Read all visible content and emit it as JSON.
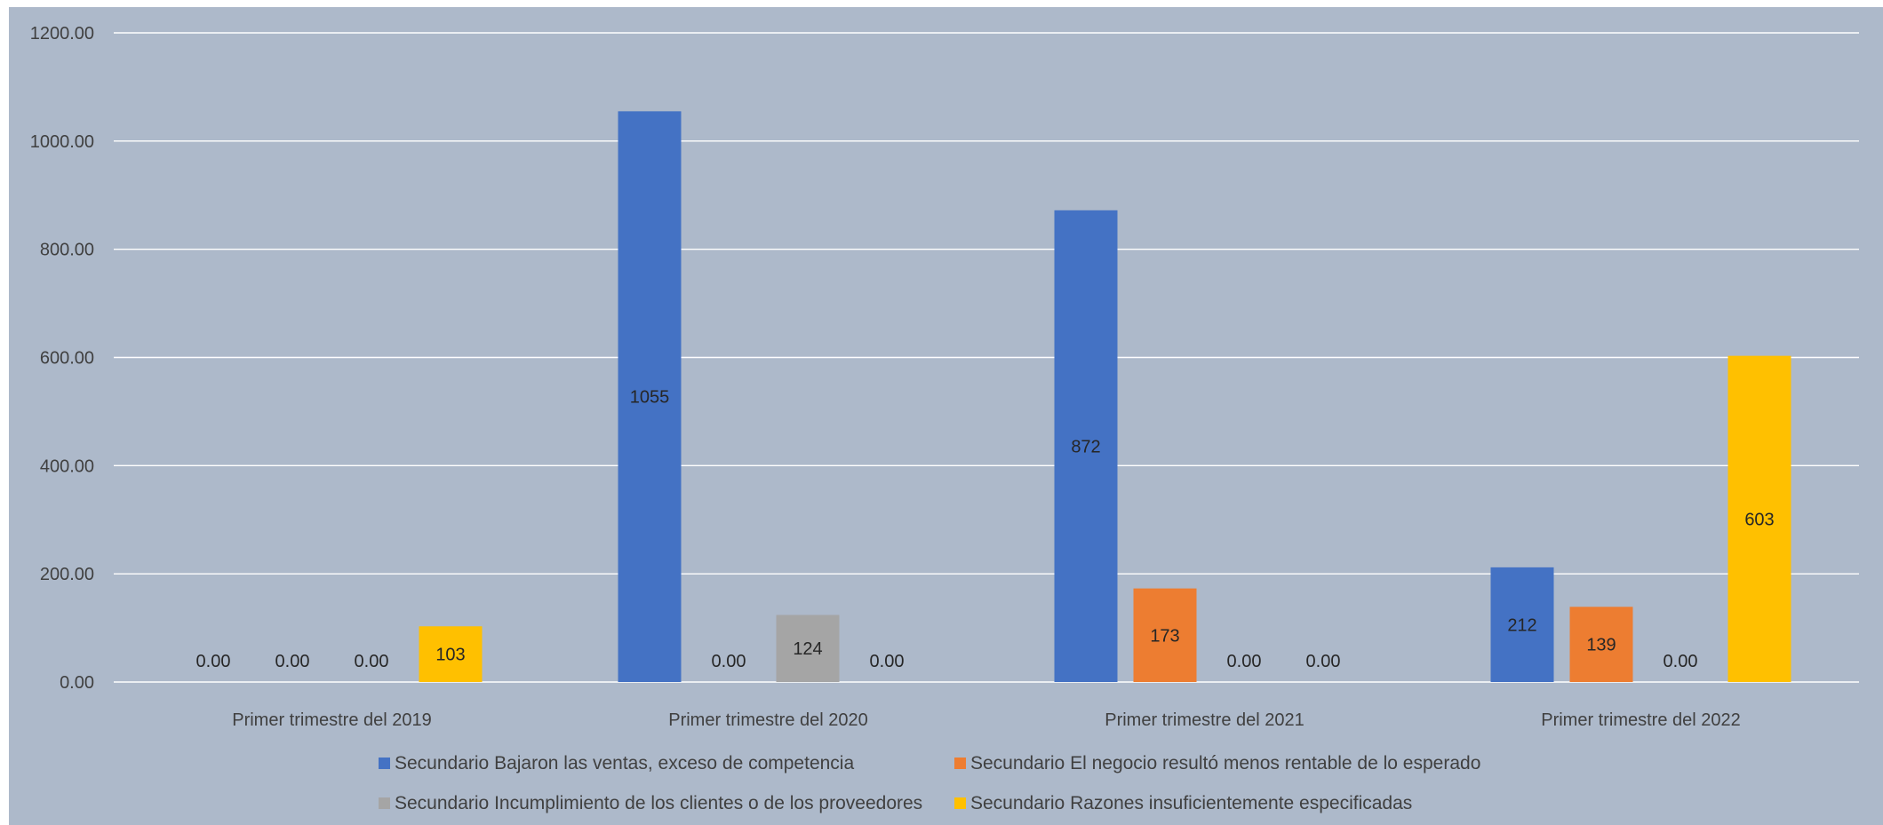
{
  "chart_data": {
    "type": "bar",
    "categories": [
      "Primer trimestre del 2019",
      "Primer trimestre del 2020",
      "Primer trimestre del 2021",
      "Primer trimestre del 2022"
    ],
    "series": [
      {
        "name": "Secundario Bajaron las ventas, exceso de competencia",
        "color": "#4472c4",
        "values": [
          0,
          1055,
          872,
          212
        ],
        "labels": [
          "0.00",
          "1055",
          "872",
          "212"
        ]
      },
      {
        "name": "Secundario El negocio resultó menos rentable de lo esperado",
        "color": "#ed7d31",
        "values": [
          0,
          0,
          173,
          139
        ],
        "labels": [
          "0.00",
          "0.00",
          "173",
          "139"
        ]
      },
      {
        "name": "Secundario Incumplimiento de los clientes o de los proveedores",
        "color": "#a5a5a5",
        "values": [
          0,
          124,
          0,
          0
        ],
        "labels": [
          "0.00",
          "124",
          "0.00",
          "0.00"
        ]
      },
      {
        "name": "Secundario Razones insuficientemente especificadas",
        "color": "#ffc000",
        "values": [
          103,
          0,
          0,
          603
        ],
        "labels": [
          "103",
          "0.00",
          "0.00",
          "603"
        ]
      }
    ],
    "y_ticks": [
      "0.00",
      "200.00",
      "400.00",
      "600.00",
      "800.00",
      "1000.00",
      "1200.00"
    ],
    "ylim": [
      0,
      1200
    ],
    "grid": true,
    "legend_position": "bottom",
    "title": "",
    "xlabel": "",
    "ylabel": "",
    "background_color": "#adb9ca",
    "gridline_color": "#ffffff"
  }
}
